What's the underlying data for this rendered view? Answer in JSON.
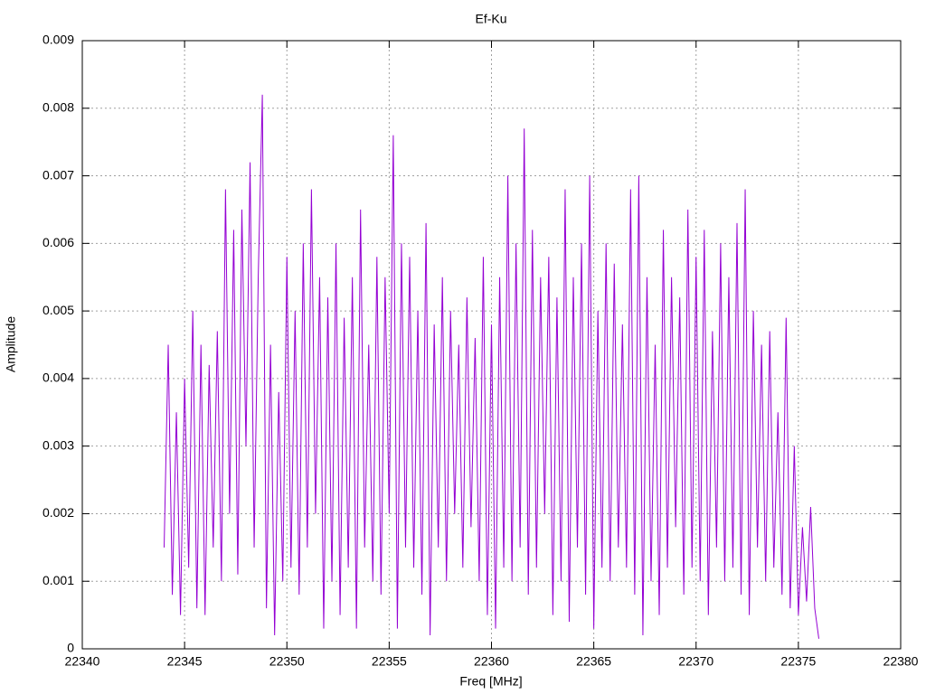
{
  "chart_data": {
    "type": "line",
    "title": "Ef-Ku",
    "x_label": "Freq [MHz]",
    "y_label": "Amplitude",
    "xlim": [
      22340,
      22380
    ],
    "xticks": [
      22340,
      22345,
      22350,
      22355,
      22360,
      22365,
      22370,
      22375,
      22380
    ],
    "ylim": [
      0,
      0.009
    ],
    "yticks": [
      0,
      0.001,
      0.002,
      0.003,
      0.004,
      0.005,
      0.006,
      0.007,
      0.008,
      0.009
    ],
    "grid": true,
    "series": [
      {
        "color": "#9400d3",
        "x": [
          22344,
          22344.2,
          22344.4,
          22344.6,
          22344.8,
          22345,
          22345.2,
          22345.4,
          22345.6,
          22345.8,
          22346,
          22346.2,
          22346.4,
          22346.6,
          22346.8,
          22347,
          22347.2,
          22347.4,
          22347.6,
          22347.8,
          22348,
          22348.2,
          22348.4,
          22348.6,
          22348.8,
          22349,
          22349.2,
          22349.4,
          22349.6,
          22349.8,
          22350,
          22350.2,
          22350.4,
          22350.6,
          22350.8,
          22351,
          22351.2,
          22351.4,
          22351.6,
          22351.8,
          22352,
          22352.2,
          22352.4,
          22352.6,
          22352.8,
          22353,
          22353.2,
          22353.4,
          22353.6,
          22353.8,
          22354,
          22354.2,
          22354.4,
          22354.6,
          22354.8,
          22355,
          22355.2,
          22355.4,
          22355.6,
          22355.8,
          22356,
          22356.2,
          22356.4,
          22356.6,
          22356.8,
          22357,
          22357.2,
          22357.4,
          22357.6,
          22357.8,
          22358,
          22358.2,
          22358.4,
          22358.6,
          22358.8,
          22359,
          22359.2,
          22359.4,
          22359.6,
          22359.8,
          22360,
          22360.2,
          22360.4,
          22360.6,
          22360.8,
          22361,
          22361.2,
          22361.4,
          22361.6,
          22361.8,
          22362,
          22362.2,
          22362.4,
          22362.6,
          22362.8,
          22363,
          22363.2,
          22363.4,
          22363.6,
          22363.8,
          22364,
          22364.2,
          22364.4,
          22364.6,
          22364.8,
          22365,
          22365.2,
          22365.4,
          22365.6,
          22365.8,
          22366,
          22366.2,
          22366.4,
          22366.6,
          22366.8,
          22367,
          22367.2,
          22367.4,
          22367.6,
          22367.8,
          22368,
          22368.2,
          22368.4,
          22368.6,
          22368.8,
          22369,
          22369.2,
          22369.4,
          22369.6,
          22369.8,
          22370,
          22370.2,
          22370.4,
          22370.6,
          22370.8,
          22371,
          22371.2,
          22371.4,
          22371.6,
          22371.8,
          22372,
          22372.2,
          22372.4,
          22372.6,
          22372.8,
          22373,
          22373.2,
          22373.4,
          22373.6,
          22373.8,
          22374,
          22374.2,
          22374.4,
          22374.6,
          22374.8,
          22375,
          22375.2,
          22375.4,
          22375.6,
          22375.8,
          22376
        ],
        "values": [
          0.0015,
          0.0045,
          0.0008,
          0.0035,
          0.0005,
          0.004,
          0.0012,
          0.005,
          0.0006,
          0.0045,
          0.0005,
          0.0042,
          0.0015,
          0.0047,
          0.001,
          0.0068,
          0.002,
          0.0062,
          0.0011,
          0.0065,
          0.003,
          0.0072,
          0.0015,
          0.0055,
          0.0082,
          0.0006,
          0.0045,
          0.0002,
          0.0038,
          0.001,
          0.0058,
          0.0012,
          0.005,
          0.0008,
          0.006,
          0.0015,
          0.0068,
          0.002,
          0.0055,
          0.0003,
          0.0052,
          0.001,
          0.006,
          0.0005,
          0.0049,
          0.0012,
          0.0055,
          0.0003,
          0.0065,
          0.0015,
          0.0045,
          0.001,
          0.0058,
          0.0008,
          0.0055,
          0.002,
          0.0076,
          0.0003,
          0.006,
          0.0015,
          0.0058,
          0.0012,
          0.005,
          0.0008,
          0.0063,
          0.0002,
          0.0048,
          0.0015,
          0.0055,
          0.001,
          0.005,
          0.002,
          0.0045,
          0.0012,
          0.0052,
          0.0018,
          0.0046,
          0.001,
          0.0058,
          0.0005,
          0.0048,
          0.0003,
          0.0055,
          0.0012,
          0.007,
          0.001,
          0.006,
          0.0015,
          0.0077,
          0.0008,
          0.0062,
          0.0012,
          0.0055,
          0.002,
          0.0058,
          0.0005,
          0.0052,
          0.001,
          0.0068,
          0.0004,
          0.0055,
          0.0015,
          0.006,
          0.0008,
          0.007,
          0.0003,
          0.005,
          0.0012,
          0.006,
          0.001,
          0.0057,
          0.0015,
          0.0048,
          0.0012,
          0.0068,
          0.0008,
          0.007,
          0.0002,
          0.0055,
          0.001,
          0.0045,
          0.0005,
          0.0062,
          0.0012,
          0.0055,
          0.0018,
          0.0052,
          0.0008,
          0.0065,
          0.0012,
          0.0058,
          0.001,
          0.0062,
          0.0005,
          0.0047,
          0.0015,
          0.006,
          0.001,
          0.0055,
          0.0012,
          0.0063,
          0.0008,
          0.0068,
          0.0005,
          0.005,
          0.0015,
          0.0045,
          0.001,
          0.0047,
          0.0012,
          0.0035,
          0.0008,
          0.0049,
          0.0006,
          0.003,
          0.0005,
          0.0018,
          0.0007,
          0.0021,
          0.0006,
          0.00015
        ]
      }
    ]
  }
}
